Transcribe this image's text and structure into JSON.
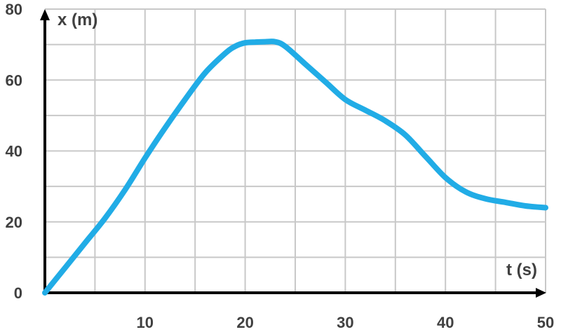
{
  "chart_data": {
    "type": "line",
    "title": "",
    "xlabel": "t (s)",
    "ylabel": "x (m)",
    "xlim": [
      0,
      50
    ],
    "ylim": [
      0,
      80
    ],
    "x_ticks": [
      10,
      20,
      30,
      40,
      50
    ],
    "y_ticks": [
      0,
      20,
      40,
      60,
      80
    ],
    "grid": true,
    "line_color": "#21ace6",
    "series": [
      {
        "x": [
          0,
          2,
          4,
          6,
          8,
          10,
          12,
          14,
          16,
          18,
          19,
          20,
          21,
          22,
          23,
          24,
          26,
          28,
          30,
          32,
          34,
          36,
          38,
          40,
          42,
          44,
          46,
          48,
          50
        ],
        "values": [
          0,
          7,
          14,
          21,
          29,
          38,
          46.5,
          54.5,
          62,
          67.5,
          69.5,
          70.5,
          70.7,
          70.8,
          70.8,
          69.5,
          64.5,
          59.5,
          54.5,
          51.5,
          48.5,
          44.5,
          38.5,
          32.5,
          28.5,
          26.5,
          25.5,
          24.5,
          24
        ]
      }
    ]
  }
}
